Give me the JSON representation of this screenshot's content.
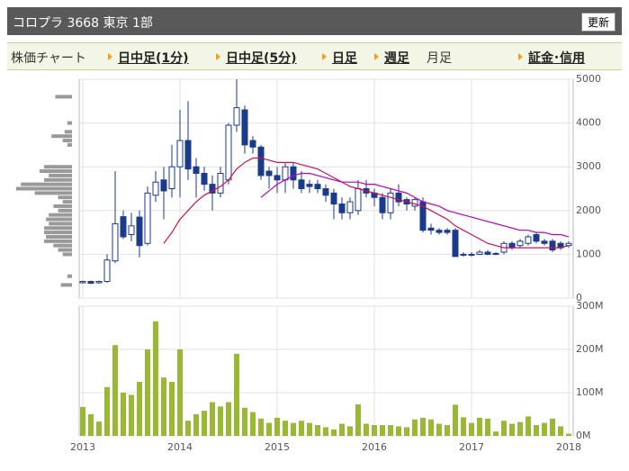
{
  "header": {
    "title": "コロプラ 3668 東京 1部",
    "button": "更新"
  },
  "tabs": [
    {
      "label": "株価チャート",
      "link": false
    },
    {
      "label": "日中足(1分)",
      "link": true
    },
    {
      "label": "日中足(5分)",
      "link": true
    },
    {
      "label": "日足",
      "link": true
    },
    {
      "label": "週足",
      "link": true
    },
    {
      "label": "月足",
      "link": false
    },
    {
      "label": "証金･信用",
      "link": true
    }
  ],
  "chart_data": [
    {
      "type": "candlestick",
      "categories": [
        "2013",
        null,
        null,
        null,
        null,
        null,
        null,
        null,
        null,
        null,
        null,
        null,
        "2014",
        null,
        null,
        null,
        null,
        null,
        null,
        null,
        null,
        null,
        null,
        null,
        "2015",
        null,
        null,
        null,
        null,
        null,
        null,
        null,
        null,
        null,
        null,
        null,
        "2016",
        null,
        null,
        null,
        null,
        null,
        null,
        null,
        null,
        null,
        null,
        null,
        "2017",
        null,
        null,
        null,
        null,
        null,
        null,
        null,
        null,
        null,
        null,
        null,
        "2018"
      ],
      "open": [
        350,
        380,
        350,
        380,
        850,
        1860,
        1450,
        1850,
        1250,
        2350,
        2700,
        2500,
        3000,
        3600,
        3000,
        2850,
        2600,
        2400,
        2700,
        3950,
        4300,
        3600,
        3450,
        2900,
        2800,
        2700,
        3000,
        2700,
        2600,
        2600,
        2500,
        2400,
        2150,
        1950,
        2000,
        2500,
        2400,
        2300,
        1950,
        2400,
        2250,
        2100,
        2200,
        1600,
        1550,
        1550,
        1550,
        1000,
        1000,
        1000,
        1050,
        1020,
        1050,
        1250,
        1200,
        1250,
        1450,
        1300,
        1300,
        1250,
        1200
      ],
      "high": [
        400,
        400,
        400,
        1000,
        2900,
        2000,
        1950,
        2000,
        2550,
        2900,
        3000,
        3500,
        4300,
        4500,
        3200,
        3000,
        2800,
        3000,
        4000,
        5000,
        4400,
        3700,
        3500,
        3000,
        3000,
        3100,
        3100,
        2900,
        2700,
        2700,
        2600,
        2500,
        2300,
        2300,
        2700,
        2700,
        2500,
        2400,
        2500,
        2600,
        2300,
        2300,
        2300,
        1700,
        1600,
        1600,
        1600,
        1050,
        1050,
        1100,
        1100,
        1050,
        1300,
        1300,
        1350,
        1450,
        1500,
        1350,
        1350,
        1300,
        1300
      ],
      "low": [
        330,
        320,
        330,
        350,
        800,
        1350,
        1300,
        930,
        1200,
        2200,
        1800,
        2300,
        2300,
        2700,
        2300,
        2450,
        2000,
        2300,
        2600,
        3800,
        3300,
        3300,
        2700,
        2500,
        2400,
        2400,
        2500,
        2400,
        2400,
        2400,
        2200,
        1800,
        1800,
        1800,
        1900,
        2300,
        2100,
        1800,
        1800,
        2100,
        2000,
        2000,
        1500,
        1450,
        1450,
        1450,
        950,
        950,
        950,
        980,
        980,
        980,
        1000,
        1100,
        1150,
        1200,
        1250,
        1200,
        1050,
        1100,
        1150
      ],
      "close": [
        380,
        340,
        380,
        870,
        1700,
        1400,
        1650,
        1200,
        2400,
        2650,
        2450,
        3000,
        3600,
        2950,
        2850,
        2600,
        2400,
        2850,
        3950,
        4350,
        3500,
        3450,
        2800,
        2800,
        2700,
        3000,
        2700,
        2500,
        2550,
        2500,
        2350,
        2150,
        1950,
        2200,
        2500,
        2400,
        2300,
        1950,
        2400,
        2200,
        2150,
        2250,
        1550,
        1550,
        1500,
        1500,
        950,
        980,
        990,
        1050,
        1000,
        1000,
        1250,
        1150,
        1300,
        1400,
        1300,
        1250,
        1100,
        1150,
        1250
      ],
      "up_color": "#ffffff",
      "down_color": "#1a3a8c",
      "edge_color": "#1a3a8c",
      "series": [
        {
          "color": "#cc1155",
          "values": [
            null,
            null,
            null,
            null,
            null,
            null,
            null,
            null,
            null,
            null,
            1250,
            1500,
            1800,
            2000,
            2200,
            2350,
            2450,
            2550,
            2700,
            2950,
            3100,
            3200,
            3200,
            3150,
            3100,
            3100,
            3100,
            3050,
            3000,
            2950,
            2850,
            2750,
            2650,
            2550,
            2500,
            2450,
            2400,
            2350,
            2300,
            2250,
            2200,
            2150,
            2100,
            2000,
            1900,
            1800,
            1650,
            1550,
            1450,
            1350,
            1250,
            1200,
            1150,
            1150,
            1150,
            1150,
            1150,
            1150,
            1150,
            1150,
            1200
          ]
        },
        {
          "color": "#bb00bb",
          "values": [
            null,
            null,
            null,
            null,
            null,
            null,
            null,
            null,
            null,
            null,
            null,
            null,
            null,
            null,
            null,
            null,
            null,
            null,
            null,
            null,
            null,
            null,
            2300,
            2450,
            2600,
            2700,
            2800,
            2850,
            2850,
            2800,
            2750,
            2700,
            2650,
            2650,
            2650,
            2600,
            2600,
            2550,
            2500,
            2450,
            2400,
            2300,
            2200,
            2150,
            2100,
            2000,
            1950,
            1900,
            1850,
            1800,
            1750,
            1700,
            1650,
            1600,
            1550,
            1550,
            1500,
            1500,
            1450,
            1450,
            1400
          ]
        }
      ],
      "volume_profile": {
        "color": "#999999",
        "levels": [
          4600,
          4000,
          3800,
          3700,
          3600,
          3500,
          3000,
          2900,
          2800,
          2700,
          2600,
          2500,
          2400,
          2300,
          2200,
          2100,
          2000,
          1900,
          1800,
          1700,
          1600,
          1500,
          1400,
          1300,
          1200,
          1100,
          1000,
          500,
          300
        ],
        "values": [
          18,
          5,
          8,
          22,
          10,
          5,
          30,
          35,
          25,
          30,
          55,
          60,
          40,
          15,
          10,
          20,
          15,
          25,
          28,
          25,
          30,
          30,
          28,
          30,
          20,
          15,
          10,
          5,
          12
        ]
      },
      "ylim": [
        0,
        5000
      ],
      "yticks": [
        0,
        1000,
        2000,
        3000,
        4000,
        5000
      ],
      "grid": true
    },
    {
      "type": "bar",
      "color": "#99b833",
      "categories": [
        "2013",
        null,
        null,
        null,
        null,
        null,
        null,
        null,
        null,
        null,
        null,
        null,
        "2014",
        null,
        null,
        null,
        null,
        null,
        null,
        null,
        null,
        null,
        null,
        null,
        "2015",
        null,
        null,
        null,
        null,
        null,
        null,
        null,
        null,
        null,
        null,
        null,
        "2016",
        null,
        null,
        null,
        null,
        null,
        null,
        null,
        null,
        null,
        null,
        null,
        "2017",
        null,
        null,
        null,
        null,
        null,
        null,
        null,
        null,
        null,
        null,
        null,
        "2018"
      ],
      "values": [
        67000000,
        50000000,
        33000000,
        113000000,
        210000000,
        100000000,
        95000000,
        125000000,
        200000000,
        265000000,
        135000000,
        125000000,
        200000000,
        35000000,
        50000000,
        58000000,
        78000000,
        68000000,
        78000000,
        190000000,
        65000000,
        55000000,
        40000000,
        30000000,
        42000000,
        35000000,
        30000000,
        35000000,
        30000000,
        25000000,
        20000000,
        15000000,
        28000000,
        22000000,
        73000000,
        28000000,
        25000000,
        25000000,
        25000000,
        22000000,
        20000000,
        38000000,
        42000000,
        38000000,
        28000000,
        25000000,
        72000000,
        43000000,
        30000000,
        42000000,
        40000000,
        10000000,
        35000000,
        28000000,
        32000000,
        45000000,
        25000000,
        30000000,
        40000000,
        22000000,
        5000000
      ],
      "ylim": [
        0,
        300000000
      ],
      "yticks": [
        {
          "value": 0,
          "label": "0M"
        },
        {
          "value": 100000000,
          "label": "100M"
        },
        {
          "value": 200000000,
          "label": "200M"
        },
        {
          "value": 300000000,
          "label": "300M"
        }
      ],
      "grid": true
    }
  ]
}
